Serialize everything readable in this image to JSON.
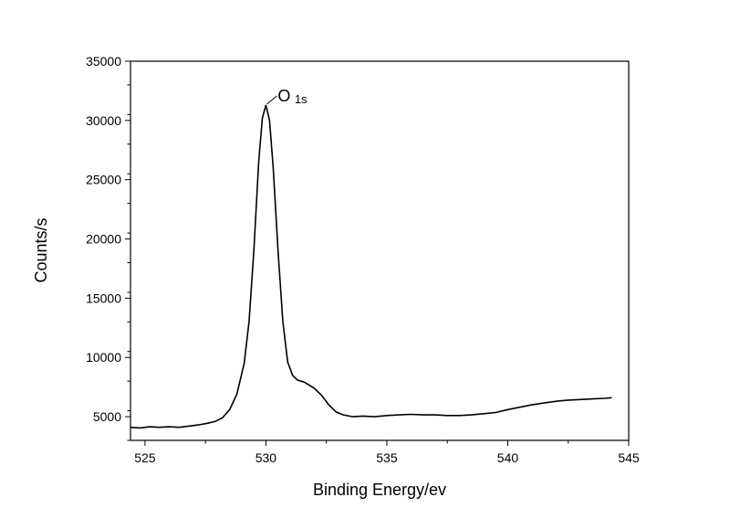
{
  "chart_data": {
    "type": "line",
    "title": "",
    "xlabel": "Binding Energy/ev",
    "ylabel": "Counts/s",
    "xlim": [
      524.4,
      545
    ],
    "ylim": [
      3000,
      35000
    ],
    "x_ticks": [
      525,
      530,
      535,
      540,
      545
    ],
    "y_ticks": [
      5000,
      10000,
      15000,
      20000,
      25000,
      30000,
      35000
    ],
    "x_minor_step": 2.5,
    "y_minor_step": 2500,
    "grid": false,
    "legend": "none",
    "annotation": {
      "main": "O",
      "sub": "1s",
      "x": 530.0,
      "y": 31300
    },
    "series": [
      {
        "x": [
          524.4,
          524.8,
          525.2,
          525.6,
          526.0,
          526.4,
          526.8,
          527.2,
          527.6,
          527.9,
          528.2,
          528.5,
          528.8,
          529.1,
          529.3,
          529.5,
          529.7,
          529.85,
          530.0,
          530.15,
          530.3,
          530.5,
          530.7,
          530.9,
          531.1,
          531.3,
          531.6,
          532.0,
          532.3,
          532.6,
          532.9,
          533.2,
          533.6,
          534.0,
          534.5,
          535.0,
          535.5,
          536.0,
          536.5,
          537.0,
          537.5,
          538.0,
          538.5,
          539.0,
          539.5,
          540.0,
          540.5,
          541.0,
          541.5,
          542.0,
          542.5,
          543.0,
          543.5,
          544.0,
          544.3
        ],
        "y": [
          4100,
          4050,
          4150,
          4100,
          4150,
          4100,
          4200,
          4300,
          4450,
          4600,
          4900,
          5600,
          6900,
          9500,
          13000,
          19000,
          26500,
          30200,
          31300,
          30000,
          26000,
          19000,
          13000,
          9600,
          8500,
          8100,
          7900,
          7400,
          6800,
          6000,
          5400,
          5150,
          5000,
          5050,
          5000,
          5100,
          5150,
          5200,
          5150,
          5150,
          5100,
          5100,
          5150,
          5250,
          5350,
          5600,
          5800,
          6000,
          6150,
          6300,
          6400,
          6450,
          6500,
          6550,
          6600
        ]
      }
    ]
  }
}
